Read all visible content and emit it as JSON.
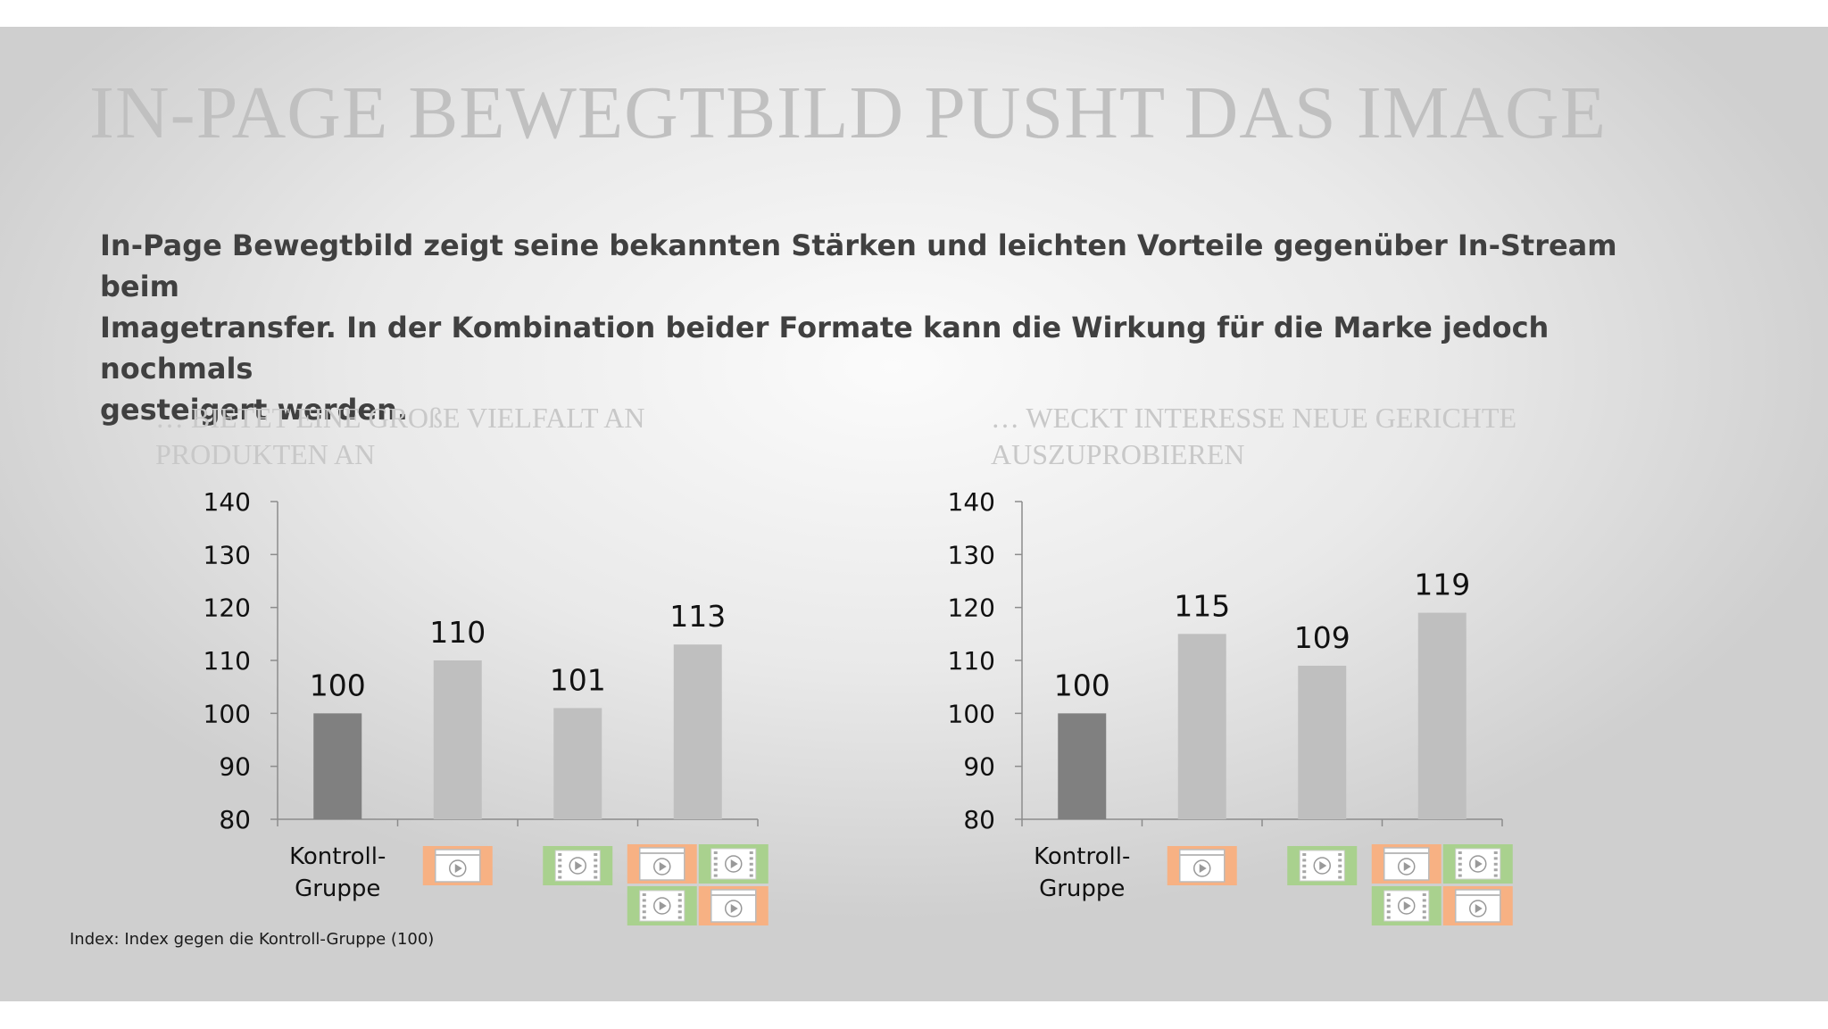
{
  "slide": {
    "title": "IN-PAGE BEWEGTBILD PUSHT DAS IMAGE",
    "intro_lines": [
      "In-Page Bewegtbild zeigt seine bekannten Stärken und leichten Vorteile gegenüber In-Stream beim",
      "Imagetransfer.  In der Kombination beider Formate  kann die Wirkung  für die Marke jedoch nochmals",
      "gesteigert werden."
    ],
    "footnote": "Index: Index gegen die Kontroll-Gruppe (100)"
  },
  "colors": {
    "control_bar": "#808080",
    "other_bar": "#bfbfbf",
    "instream_icon": "#f7b183",
    "inpage_icon": "#a9d18e",
    "axis": "#8c8c8c"
  },
  "chart_data": [
    {
      "type": "bar",
      "title": "… BIETET EINE GROßE VIELFALT AN PRODUKTEN AN",
      "title_lines": [
        "… BIETET EINE GROßE VIELFALT AN",
        "PRODUKTEN AN"
      ],
      "categories": [
        "Kontroll-Gruppe",
        "In-Stream",
        "In-Page",
        "In-Stream + In-Page"
      ],
      "category_label_lines": [
        "Kontroll-",
        "Gruppe"
      ],
      "category_icons": [
        [],
        [
          "instream-icon"
        ],
        [
          "inpage-icon"
        ],
        [
          "instream-icon",
          "inpage-icon",
          "inpage-icon",
          "instream-icon"
        ]
      ],
      "values": [
        100,
        110,
        101,
        113
      ],
      "ylim": [
        80,
        140
      ],
      "yticks": [
        80,
        90,
        100,
        110,
        120,
        130,
        140
      ],
      "grid": false,
      "legend": "none"
    },
    {
      "type": "bar",
      "title": "… WECKT INTERESSE NEUE GERICHTE AUSZUPROBIEREN",
      "title_lines": [
        "… WECKT INTERESSE NEUE GERICHTE",
        "AUSZUPROBIEREN"
      ],
      "categories": [
        "Kontroll-Gruppe",
        "In-Stream",
        "In-Page",
        "In-Stream + In-Page"
      ],
      "category_label_lines": [
        "Kontroll-",
        "Gruppe"
      ],
      "category_icons": [
        [],
        [
          "instream-icon"
        ],
        [
          "inpage-icon"
        ],
        [
          "instream-icon",
          "inpage-icon",
          "inpage-icon",
          "instream-icon"
        ]
      ],
      "values": [
        100,
        115,
        109,
        119
      ],
      "ylim": [
        80,
        140
      ],
      "yticks": [
        80,
        90,
        100,
        110,
        120,
        130,
        140
      ],
      "grid": false,
      "legend": "none"
    }
  ]
}
